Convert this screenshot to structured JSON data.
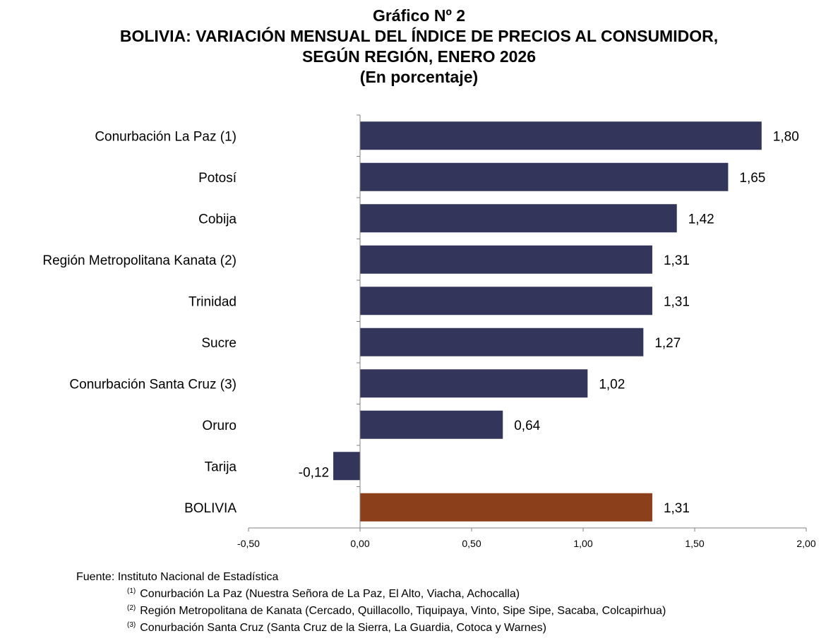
{
  "title": {
    "line1": "Gráfico Nº 2",
    "line2": "BOLIVIA: VARIACIÓN MENSUAL DEL ÍNDICE DE PRECIOS AL CONSUMIDOR,",
    "line3": "SEGÚN REGIÓN, ENERO 2026",
    "line4": "(En porcentaje)"
  },
  "chart_data": {
    "type": "bar",
    "orientation": "horizontal",
    "title": "BOLIVIA: VARIACIÓN MENSUAL DEL ÍNDICE DE PRECIOS AL CONSUMIDOR, SEGÚN REGIÓN, ENERO 2026",
    "subtitle": "(En porcentaje)",
    "xlabel": "",
    "ylabel": "",
    "xlim": [
      -0.5,
      2.0
    ],
    "grid": false,
    "categories": [
      "Conurbación La Paz (1)",
      "Potosí",
      "Cobija",
      "Región Metropolitana Kanata (2)",
      "Trinidad",
      "Sucre",
      "Conurbación Santa Cruz (3)",
      "Oruro",
      "Tarija",
      "BOLIVIA"
    ],
    "values": [
      1.8,
      1.65,
      1.42,
      1.31,
      1.31,
      1.27,
      1.02,
      0.64,
      -0.12,
      1.31
    ],
    "data_labels": [
      "1,80",
      "1,65",
      "1,42",
      "1,31",
      "1,31",
      "1,27",
      "1,02",
      "0,64",
      "-0,12",
      "1,31"
    ],
    "x_ticks": [
      -0.5,
      0,
      0.5,
      1.0,
      1.5,
      2.0
    ],
    "x_tick_labels": [
      "-0,50",
      "0,00",
      "0,50",
      "1,00",
      "1,50",
      "2,00"
    ],
    "colors": {
      "region": "#33355a",
      "total": "#8b3f1a",
      "axis": "#808080"
    },
    "highlight_category": "BOLIVIA"
  },
  "footer": {
    "source": "Fuente: Instituto Nacional de Estadística",
    "notes": [
      {
        "mark": "(1)",
        "text": "Conurbación La Paz (Nuestra Señora de La Paz, El Alto, Viacha, Achocalla)"
      },
      {
        "mark": "(2)",
        "text": "Región Metropolitana de Kanata (Cercado, Quillacollo, Tiquipaya, Vinto, Sipe Sipe, Sacaba, Colcapirhua)"
      },
      {
        "mark": "(3)",
        "text": "Conurbación Santa Cruz (Santa Cruz de la Sierra, La Guardia, Cotoca y Warnes)"
      }
    ]
  }
}
